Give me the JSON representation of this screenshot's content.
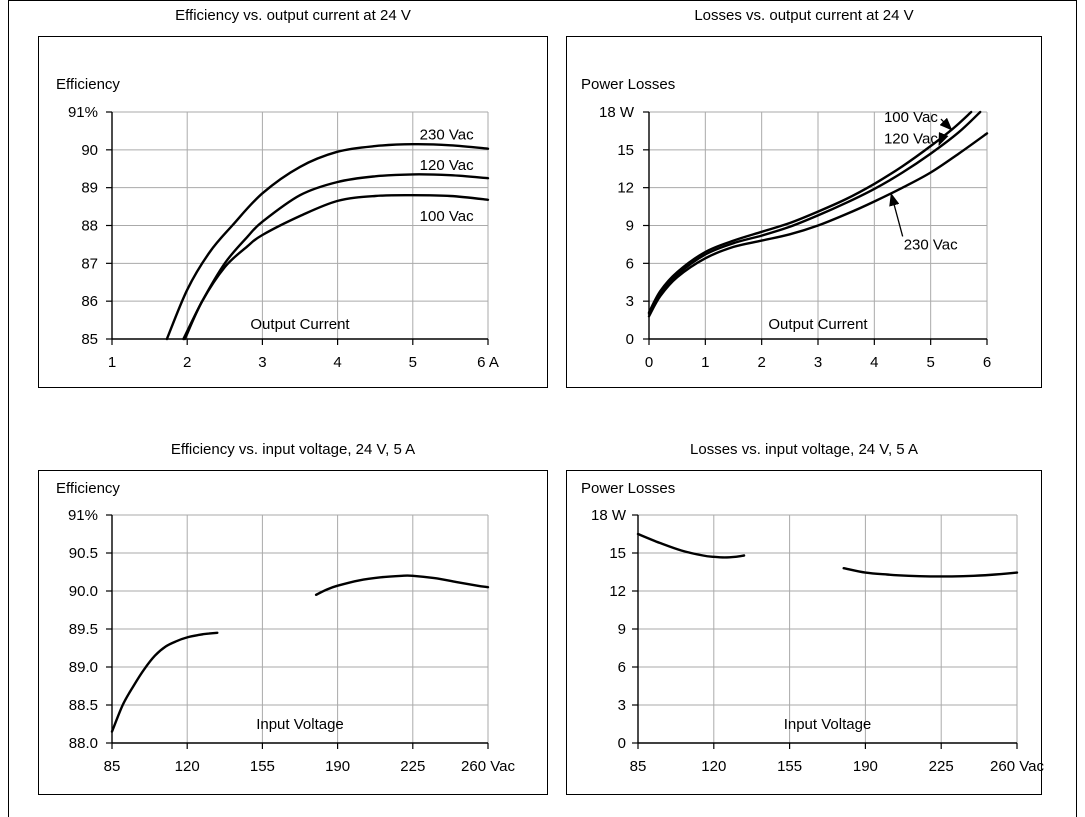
{
  "chart_data": [
    {
      "type": "line",
      "title": "Efficiency vs. output current at 24 V",
      "ylabel": "Efficiency",
      "xlabel": "Output Current",
      "xlim": [
        1,
        6
      ],
      "ylim": [
        85,
        91
      ],
      "xticks": [
        1,
        2,
        3,
        4,
        5,
        6
      ],
      "xtick_labels": [
        "1",
        "2",
        "3",
        "4",
        "5",
        "6 A"
      ],
      "yticks": [
        85,
        86,
        87,
        88,
        89,
        90,
        91
      ],
      "ytick_labels": [
        "85",
        "86",
        "87",
        "88",
        "89",
        "90",
        "91%"
      ],
      "grid": true,
      "series": [
        {
          "name": "230 Vac",
          "x": [
            1.73,
            2.0,
            2.3,
            2.6,
            3.0,
            3.5,
            4.0,
            4.5,
            5.0,
            5.5,
            6.0
          ],
          "y": [
            85.0,
            86.3,
            87.3,
            88.0,
            88.85,
            89.55,
            89.95,
            90.1,
            90.15,
            90.12,
            90.03
          ]
        },
        {
          "name": "120 Vac",
          "x": [
            1.95,
            2.2,
            2.5,
            2.8,
            3.0,
            3.5,
            4.0,
            4.5,
            5.0,
            5.5,
            6.0
          ],
          "y": [
            85.0,
            86.0,
            87.0,
            87.7,
            88.1,
            88.8,
            89.15,
            89.3,
            89.35,
            89.33,
            89.25
          ]
        },
        {
          "name": "100 Vac",
          "x": [
            1.97,
            2.2,
            2.5,
            2.8,
            3.0,
            3.5,
            4.0,
            4.5,
            5.0,
            5.5,
            6.0
          ],
          "y": [
            85.0,
            86.0,
            86.9,
            87.45,
            87.75,
            88.25,
            88.65,
            88.78,
            88.8,
            88.78,
            88.68
          ]
        }
      ],
      "annotations": [
        {
          "text": "230 Vac",
          "x": 5.45,
          "y": 90.4
        },
        {
          "text": "120 Vac",
          "x": 5.45,
          "y": 89.6
        },
        {
          "text": "100 Vac",
          "x": 5.45,
          "y": 88.25
        }
      ]
    },
    {
      "type": "line",
      "title": "Losses vs. output current at 24 V",
      "ylabel": "Power Losses",
      "xlabel": "Output Current",
      "xlim": [
        0,
        6
      ],
      "ylim": [
        0,
        18
      ],
      "xticks": [
        0,
        1,
        2,
        3,
        4,
        5,
        6
      ],
      "xtick_labels": [
        "0",
        "1",
        "2",
        "3",
        "4",
        "5",
        "6"
      ],
      "yticks": [
        0,
        3,
        6,
        9,
        12,
        15,
        18
      ],
      "ytick_labels": [
        "0",
        "3",
        "6",
        "9",
        "12",
        "15",
        "18 W"
      ],
      "grid": true,
      "series": [
        {
          "name": "100 Vac",
          "x": [
            0.0,
            0.2,
            0.5,
            1.0,
            1.5,
            2.0,
            2.5,
            3.0,
            3.5,
            4.0,
            4.5,
            5.0,
            5.4,
            5.72
          ],
          "y": [
            2.1,
            3.8,
            5.3,
            6.9,
            7.8,
            8.5,
            9.2,
            10.1,
            11.1,
            12.3,
            13.7,
            15.3,
            16.7,
            18.0
          ]
        },
        {
          "name": "120 Vac",
          "x": [
            0.0,
            0.2,
            0.5,
            1.0,
            1.5,
            2.0,
            2.5,
            3.0,
            3.5,
            4.0,
            4.5,
            5.0,
            5.5,
            5.88
          ],
          "y": [
            2.0,
            3.6,
            5.1,
            6.7,
            7.6,
            8.2,
            8.9,
            9.8,
            10.8,
            11.9,
            13.2,
            14.7,
            16.4,
            18.0
          ]
        },
        {
          "name": "230 Vac",
          "x": [
            0.0,
            0.2,
            0.5,
            1.0,
            1.5,
            2.0,
            2.5,
            3.0,
            3.5,
            4.0,
            4.5,
            5.0,
            5.5,
            6.0
          ],
          "y": [
            1.8,
            3.4,
            4.9,
            6.4,
            7.3,
            7.8,
            8.3,
            9.0,
            9.9,
            10.9,
            12.0,
            13.2,
            14.7,
            16.3
          ]
        }
      ],
      "annotations": [
        {
          "text": "100 Vac",
          "x": 4.65,
          "y": 17.6,
          "arrow_to_x": 5.37,
          "arrow_to_y": 16.6
        },
        {
          "text": "120 Vac",
          "x": 4.65,
          "y": 15.9,
          "arrow_to_x": 5.15,
          "arrow_to_y": 15.4
        },
        {
          "text": "230 Vac",
          "x": 5.0,
          "y": 7.5,
          "arrow_to_x": 4.3,
          "arrow_to_y": 11.5
        }
      ]
    },
    {
      "type": "line",
      "title": "Efficiency vs. input voltage,  24 V, 5 A",
      "ylabel": "Efficiency",
      "xlabel": "Input Voltage",
      "xlim": [
        85,
        260
      ],
      "ylim": [
        88.0,
        91.0
      ],
      "xticks": [
        85,
        120,
        155,
        190,
        225,
        260
      ],
      "xtick_labels": [
        "85",
        "120",
        "155",
        "190",
        "225",
        "260 Vac"
      ],
      "yticks": [
        88.0,
        88.5,
        89.0,
        89.5,
        90.0,
        90.5,
        91.0
      ],
      "ytick_labels": [
        "88.0",
        "88.5",
        "89.0",
        "89.5",
        "90.0",
        "90.5",
        "91%"
      ],
      "grid": true,
      "series": [
        {
          "name": "",
          "x": [
            85,
            90,
            95,
            100,
            105,
            110,
            115,
            120,
            125,
            130,
            134
          ],
          "y": [
            88.15,
            88.5,
            88.75,
            88.97,
            89.15,
            89.27,
            89.34,
            89.39,
            89.42,
            89.44,
            89.45
          ]
        },
        {
          "name": "",
          "x": [
            180,
            185,
            190,
            200,
            210,
            220,
            225,
            235,
            245,
            255,
            260
          ],
          "y": [
            89.95,
            90.02,
            90.07,
            90.14,
            90.18,
            90.2,
            90.2,
            90.17,
            90.12,
            90.07,
            90.05
          ]
        }
      ]
    },
    {
      "type": "line",
      "title": "Losses vs. input voltage,  24 V, 5 A",
      "ylabel": "Power Losses",
      "xlabel": "Input Voltage",
      "xlim": [
        85,
        260
      ],
      "ylim": [
        0,
        18
      ],
      "xticks": [
        85,
        120,
        155,
        190,
        225,
        260
      ],
      "xtick_labels": [
        "85",
        "120",
        "155",
        "190",
        "225",
        "260 Vac"
      ],
      "yticks": [
        0,
        3,
        6,
        9,
        12,
        15,
        18
      ],
      "ytick_labels": [
        "0",
        "3",
        "6",
        "9",
        "12",
        "15",
        "18 W"
      ],
      "grid": true,
      "series": [
        {
          "name": "",
          "x": [
            85,
            95,
            105,
            115,
            120,
            125,
            130,
            134
          ],
          "y": [
            16.5,
            15.8,
            15.2,
            14.8,
            14.7,
            14.65,
            14.7,
            14.8
          ]
        },
        {
          "name": "",
          "x": [
            180,
            190,
            200,
            210,
            220,
            230,
            240,
            250,
            260
          ],
          "y": [
            13.8,
            13.45,
            13.3,
            13.2,
            13.15,
            13.15,
            13.2,
            13.3,
            13.45
          ]
        }
      ]
    }
  ]
}
